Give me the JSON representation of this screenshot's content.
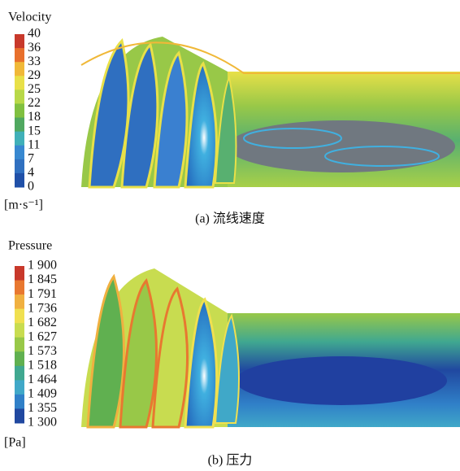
{
  "panels": [
    {
      "legend_title": "Velocity",
      "ticks": [
        "40",
        "36",
        "33",
        "29",
        "25",
        "22",
        "18",
        "15",
        "11",
        "7",
        "4",
        "0"
      ],
      "unit": "[m·s⁻¹]",
      "caption": "(a) 流线速度",
      "colors": [
        "#c8392b",
        "#e8702c",
        "#f0b838",
        "#e8e048",
        "#b8d848",
        "#80c040",
        "#50a860",
        "#40b0b8",
        "#3888d0",
        "#3070c0",
        "#2050a8"
      ]
    },
    {
      "legend_title": "Pressure",
      "ticks": [
        "1 900",
        "1 845",
        "1 791",
        "1 736",
        "1 682",
        "1 627",
        "1 573",
        "1 518",
        "1 464",
        "1 409",
        "1 355",
        "1 300"
      ],
      "unit": "[Pa]",
      "caption": "(b) 压力",
      "colors": [
        "#c8392b",
        "#e87830",
        "#f0b040",
        "#f0e050",
        "#c8dc50",
        "#98c848",
        "#60b050",
        "#40a890",
        "#40a8c8",
        "#3080c8",
        "#2048a0"
      ]
    }
  ]
}
